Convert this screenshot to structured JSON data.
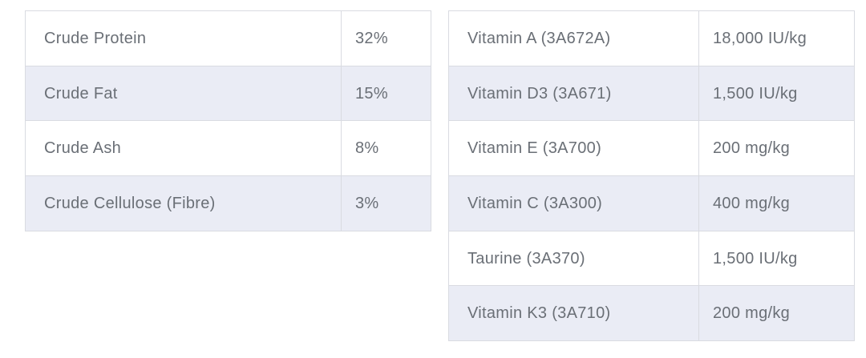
{
  "colors": {
    "row_alt_background": "#eaecf5",
    "border": "#d9dbe1",
    "text": "#6a6f76",
    "page_background": "#ffffff"
  },
  "left_table": {
    "rows": [
      {
        "label": "Crude Protein",
        "value": "32%"
      },
      {
        "label": "Crude Fat",
        "value": "15%"
      },
      {
        "label": "Crude Ash",
        "value": "8%"
      },
      {
        "label": "Crude Cellulose (Fibre)",
        "value": "3%"
      }
    ]
  },
  "right_table": {
    "rows": [
      {
        "label": "Vitamin A (3A672A)",
        "value": "18,000 IU/kg"
      },
      {
        "label": "Vitamin D3 (3A671)",
        "value": "1,500 IU/kg"
      },
      {
        "label": "Vitamin E (3A700)",
        "value": "200 mg/kg"
      },
      {
        "label": "Vitamin C (3A300)",
        "value": "400 mg/kg"
      },
      {
        "label": "Taurine (3A370)",
        "value": "1,500 IU/kg"
      },
      {
        "label": "Vitamin K3 (3A710)",
        "value": "200 mg/kg"
      }
    ]
  }
}
